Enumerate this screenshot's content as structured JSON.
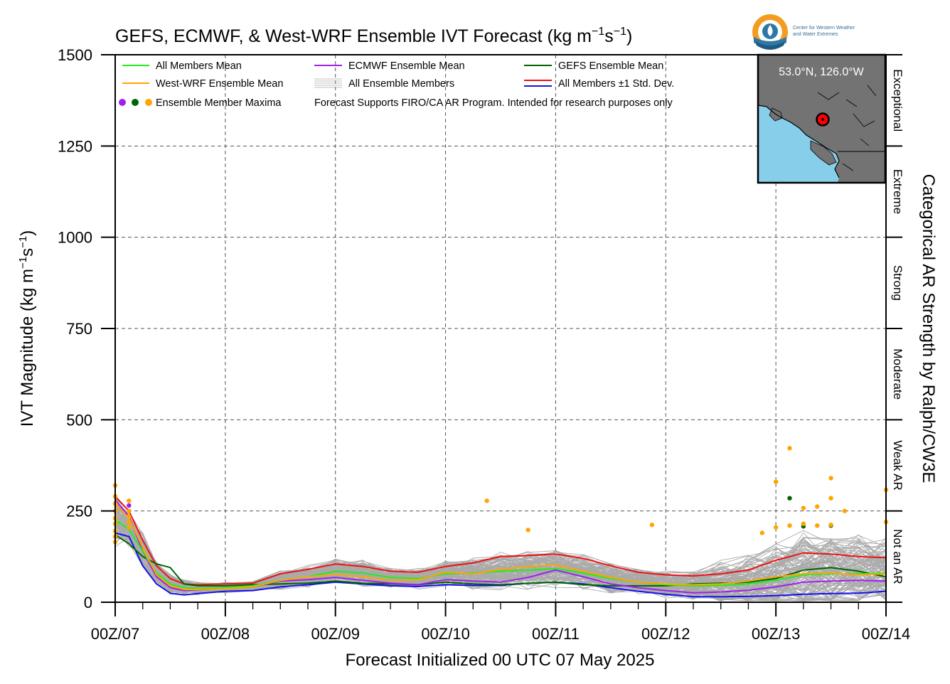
{
  "chart_data": {
    "type": "line",
    "title": {
      "main": "GEFS, ECMWF, & West-WRF Ensemble IVT Forecast (kg m",
      "sup1": "−1",
      "mid": "s",
      "sup2": "−1",
      "end": ")"
    },
    "xlabel": "Forecast Initialized 00 UTC 07 May 2025",
    "ylabel": {
      "main": "IVT Magnitude (kg m",
      "sup1": "−1",
      "mid": "s",
      "sup2": "−1",
      "end": ")"
    },
    "right_label": "Categorical AR Strength by Ralph/CW3E",
    "ylim": [
      0,
      1500
    ],
    "xlim": [
      0,
      168
    ],
    "y_ticks": [
      "0",
      "250",
      "500",
      "750",
      "1000",
      "1250",
      "1500"
    ],
    "x_tick_labels": [
      "00Z/07",
      "00Z/08",
      "00Z/09",
      "00Z/10",
      "00Z/11",
      "00Z/12",
      "00Z/13",
      "00Z/14"
    ],
    "x_tick_hours": [
      0,
      24,
      48,
      72,
      96,
      120,
      144,
      168
    ],
    "grid": true,
    "categories": [
      {
        "label": "Not an AR",
        "from": 0,
        "to": 250
      },
      {
        "label": "Weak AR",
        "from": 250,
        "to": 500
      },
      {
        "label": "Moderate",
        "from": 500,
        "to": 750
      },
      {
        "label": "Strong",
        "from": 750,
        "to": 1000
      },
      {
        "label": "Extreme",
        "from": 1000,
        "to": 1250
      },
      {
        "label": "Exceptional",
        "from": 1250,
        "to": 1500
      }
    ],
    "legend": {
      "placement": "top-left",
      "items": [
        {
          "label": "All Members Mean",
          "color": "#1fef1f",
          "kind": "line"
        },
        {
          "label": "ECMWF Ensemble Mean",
          "color": "#a020f0",
          "kind": "line"
        },
        {
          "label": "GEFS Ensemble Mean",
          "color": "#006400",
          "kind": "line"
        },
        {
          "label": "West-WRF Ensemble Mean",
          "color": "#ffa500",
          "kind": "line"
        },
        {
          "label": "All Ensemble Members",
          "color": "#aaaaaa",
          "kind": "lines"
        },
        {
          "label": "All Members ±1 Std. Dev.",
          "color": "#ee1111",
          "color2": "#1111ee",
          "kind": "double"
        },
        {
          "label": "Ensemble Member Maxima",
          "kind": "dots",
          "colors": [
            "#a020f0",
            "#006400",
            "#ffa500"
          ]
        }
      ],
      "note": "Forecast Supports FIRO/CA AR Program. Intended for research purposes only"
    },
    "inset_map": {
      "location_label": "53.0°N, 126.0°W",
      "land_color": "#737373",
      "water_color": "#87ceeb"
    },
    "logo": {
      "line1": "Center for Western Weather",
      "line2": "and Water Extremes"
    },
    "series": [
      {
        "name": "All Members ±1 Std. Dev.",
        "color": "#ee1111",
        "x": [
          0,
          3,
          6,
          9,
          12,
          15,
          18,
          24,
          30,
          36,
          42,
          48,
          54,
          60,
          66,
          72,
          78,
          84,
          90,
          96,
          102,
          108,
          114,
          120,
          126,
          132,
          138,
          144,
          150,
          156,
          162,
          168
        ],
        "values": [
          290,
          250,
          170,
          100,
          65,
          50,
          48,
          50,
          52,
          78,
          90,
          105,
          98,
          85,
          82,
          98,
          108,
          125,
          128,
          132,
          120,
          100,
          82,
          75,
          72,
          78,
          88,
          115,
          135,
          132,
          125,
          122
        ]
      },
      {
        "name": "All Members Mean",
        "color": "#1fef1f",
        "x": [
          0,
          3,
          6,
          9,
          12,
          15,
          18,
          24,
          30,
          36,
          42,
          48,
          54,
          60,
          66,
          72,
          78,
          84,
          90,
          96,
          102,
          108,
          114,
          120,
          126,
          132,
          138,
          144,
          150,
          156,
          162,
          168
        ],
        "values": [
          225,
          200,
          140,
          80,
          50,
          40,
          38,
          40,
          45,
          60,
          70,
          85,
          80,
          68,
          65,
          78,
          80,
          85,
          88,
          92,
          80,
          65,
          55,
          48,
          45,
          46,
          50,
          60,
          75,
          78,
          78,
          80
        ]
      },
      {
        "name": "West-WRF Ensemble Mean",
        "color": "#ffa500",
        "x": [
          0,
          3,
          6,
          9,
          12,
          15,
          18,
          24,
          30,
          36,
          42,
          48,
          54,
          60,
          66,
          72,
          78,
          84,
          90,
          96,
          102,
          108,
          114,
          120,
          126,
          132,
          138,
          144,
          150,
          156,
          162,
          168
        ],
        "values": [
          270,
          230,
          150,
          75,
          45,
          35,
          35,
          37,
          42,
          60,
          70,
          75,
          70,
          60,
          62,
          82,
          78,
          90,
          98,
          102,
          85,
          68,
          55,
          50,
          48,
          50,
          58,
          70,
          78,
          80,
          75,
          78
        ]
      },
      {
        "name": "ECMWF Ensemble Mean",
        "color": "#a020f0",
        "x": [
          0,
          3,
          6,
          9,
          12,
          15,
          18,
          24,
          30,
          36,
          42,
          48,
          54,
          60,
          66,
          72,
          78,
          84,
          90,
          96,
          102,
          108,
          114,
          120,
          126,
          132,
          138,
          144,
          150,
          156,
          162,
          168
        ],
        "values": [
          280,
          235,
          140,
          70,
          40,
          32,
          34,
          38,
          42,
          58,
          62,
          68,
          60,
          52,
          48,
          62,
          58,
          55,
          68,
          88,
          70,
          50,
          40,
          32,
          26,
          28,
          33,
          42,
          55,
          58,
          60,
          58
        ]
      },
      {
        "name": "GEFS Ensemble Mean",
        "color": "#006400",
        "x": [
          0,
          3,
          6,
          9,
          12,
          15,
          18,
          24,
          30,
          36,
          42,
          48,
          54,
          60,
          66,
          72,
          78,
          84,
          90,
          96,
          102,
          108,
          114,
          120,
          126,
          132,
          138,
          144,
          150,
          156,
          162,
          168
        ],
        "values": [
          185,
          160,
          125,
          105,
          95,
          50,
          45,
          45,
          48,
          50,
          52,
          58,
          52,
          50,
          48,
          55,
          50,
          48,
          52,
          55,
          48,
          45,
          45,
          45,
          50,
          52,
          55,
          65,
          88,
          95,
          85,
          70
        ]
      },
      {
        "name": "All Members −1 Std. Dev.",
        "color": "#1111ee",
        "x": [
          0,
          3,
          6,
          9,
          12,
          15,
          18,
          24,
          30,
          36,
          42,
          48,
          54,
          60,
          66,
          72,
          78,
          84,
          90,
          96,
          102,
          108,
          114,
          120,
          126,
          132,
          138,
          144,
          150,
          156,
          162,
          168
        ],
        "values": [
          190,
          180,
          100,
          50,
          25,
          20,
          24,
          30,
          32,
          42,
          48,
          55,
          50,
          45,
          43,
          48,
          46,
          46,
          52,
          55,
          50,
          40,
          30,
          22,
          15,
          15,
          16,
          18,
          22,
          24,
          25,
          30
        ]
      }
    ],
    "ensemble_members": {
      "count": 120,
      "color": "#aaaaaa"
    },
    "member_maxima": [
      {
        "x": 0,
        "y": 320,
        "color": "#ffa500"
      },
      {
        "x": 0,
        "y": 290,
        "color": "#ffa500"
      },
      {
        "x": 0,
        "y": 270,
        "color": "#ffa500"
      },
      {
        "x": 0,
        "y": 250,
        "color": "#ffa500"
      },
      {
        "x": 0,
        "y": 230,
        "color": "#ffa500"
      },
      {
        "x": 0,
        "y": 215,
        "color": "#ffa500"
      },
      {
        "x": 0,
        "y": 195,
        "color": "#ffa500"
      },
      {
        "x": 0,
        "y": 180,
        "color": "#ffa500"
      },
      {
        "x": 0,
        "y": 165,
        "color": "#ffa500"
      },
      {
        "x": 3,
        "y": 278,
        "color": "#ffa500"
      },
      {
        "x": 3,
        "y": 265,
        "color": "#a020f0"
      },
      {
        "x": 3,
        "y": 250,
        "color": "#ffa500"
      },
      {
        "x": 3,
        "y": 235,
        "color": "#ffa500"
      },
      {
        "x": 3,
        "y": 220,
        "color": "#ffa500"
      },
      {
        "x": 3,
        "y": 205,
        "color": "#ffa500"
      },
      {
        "x": 81,
        "y": 278,
        "color": "#ffa500"
      },
      {
        "x": 90,
        "y": 198,
        "color": "#ffa500"
      },
      {
        "x": 117,
        "y": 212,
        "color": "#ffa500"
      },
      {
        "x": 141,
        "y": 190,
        "color": "#ffa500"
      },
      {
        "x": 144,
        "y": 330,
        "color": "#ffa500"
      },
      {
        "x": 144,
        "y": 205,
        "color": "#ffa500"
      },
      {
        "x": 147,
        "y": 422,
        "color": "#ffa500"
      },
      {
        "x": 147,
        "y": 285,
        "color": "#006400"
      },
      {
        "x": 147,
        "y": 210,
        "color": "#ffa500"
      },
      {
        "x": 150,
        "y": 258,
        "color": "#ffa500"
      },
      {
        "x": 150,
        "y": 208,
        "color": "#006400"
      },
      {
        "x": 150,
        "y": 215,
        "color": "#ffa500"
      },
      {
        "x": 153,
        "y": 262,
        "color": "#ffa500"
      },
      {
        "x": 153,
        "y": 210,
        "color": "#ffa500"
      },
      {
        "x": 156,
        "y": 340,
        "color": "#ffa500"
      },
      {
        "x": 156,
        "y": 285,
        "color": "#ffa500"
      },
      {
        "x": 156,
        "y": 210,
        "color": "#006400"
      },
      {
        "x": 156,
        "y": 212,
        "color": "#ffa500"
      },
      {
        "x": 159,
        "y": 250,
        "color": "#ffa500"
      },
      {
        "x": 168,
        "y": 308,
        "color": "#ffa500"
      },
      {
        "x": 168,
        "y": 220,
        "color": "#ffa500"
      }
    ]
  }
}
